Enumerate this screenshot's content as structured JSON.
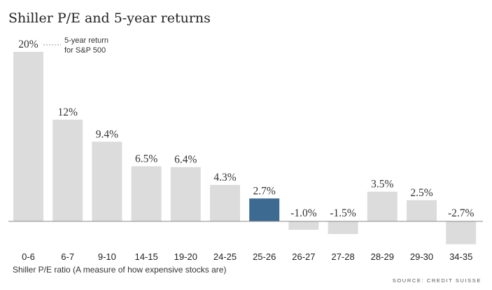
{
  "chart_data": {
    "type": "bar",
    "title": "Shiller P/E and 5-year returns",
    "categories": [
      "0-6",
      "6-7",
      "9-10",
      "14-15",
      "19-20",
      "24-25",
      "25-26",
      "26-27",
      "27-28",
      "28-29",
      "29-30",
      "34-35"
    ],
    "values": [
      20,
      12,
      9.4,
      6.5,
      6.4,
      4.3,
      2.7,
      -1.0,
      -1.5,
      3.5,
      2.5,
      -2.7
    ],
    "value_labels": [
      "20%",
      "12%",
      "9.4%",
      "6.5%",
      "6.4%",
      "4.3%",
      "2.7%",
      "-1.0%",
      "-1.5%",
      "3.5%",
      "2.5%",
      "-2.7%"
    ],
    "highlight_index": 6,
    "xlabel": "Shiller P/E ratio (A measure of how expensive stocks are)",
    "ylabel": "",
    "ylim": [
      -2.7,
      20
    ],
    "annotation": {
      "lines": [
        "5-year return",
        "for S&P 500"
      ]
    },
    "source": "SOURCE: CREDIT SUISSE",
    "colors": {
      "bar": "#dcdcdc",
      "highlight": "#3d6a91",
      "baseline": "#888888"
    }
  }
}
